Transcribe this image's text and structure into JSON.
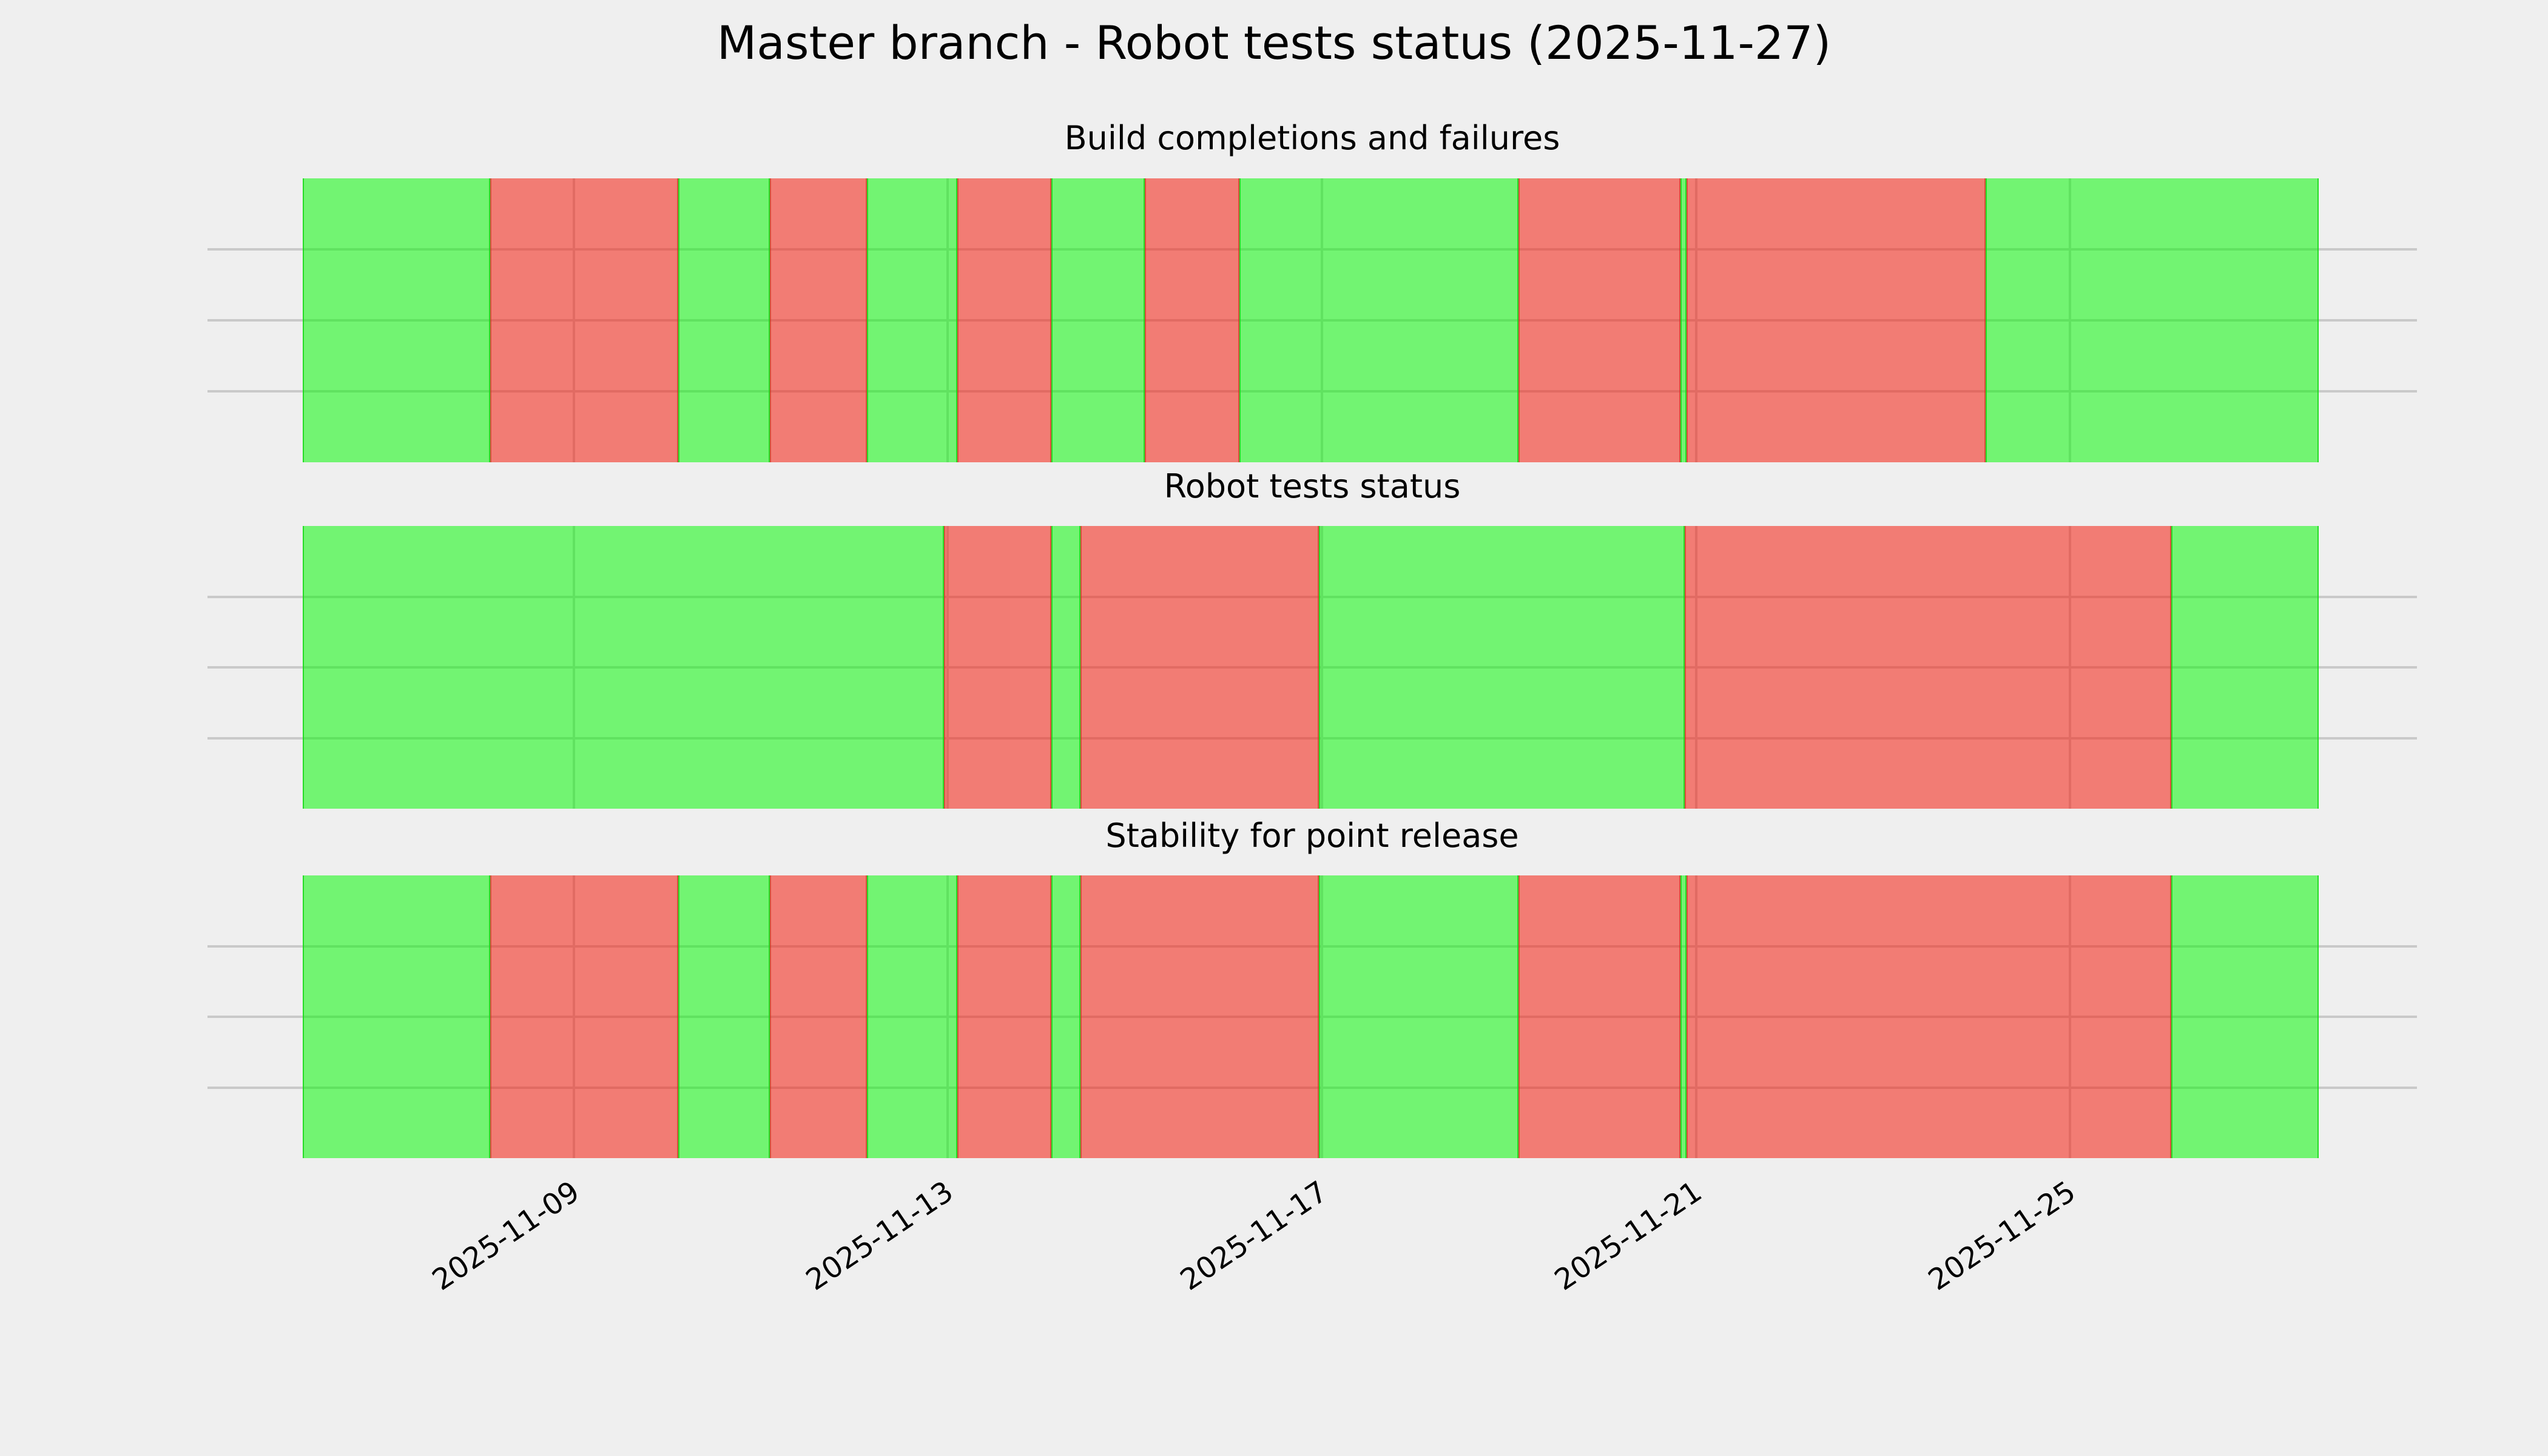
{
  "title": "Master branch - Robot tests status (2025-11-27)",
  "colors": {
    "pass_green": "#72f472",
    "fail_red": "#f37c74",
    "background": "#efefef",
    "gridline": "#c9c9c9",
    "text": "#000000"
  },
  "axis": {
    "start": "2025-11-05 02:00",
    "end": "2025-11-28 17:00",
    "ticks": [
      {
        "label": "2025-11-09",
        "t": "2025-11-09 00:00"
      },
      {
        "label": "2025-11-13",
        "t": "2025-11-13 00:00"
      },
      {
        "label": "2025-11-17",
        "t": "2025-11-17 00:00"
      },
      {
        "label": "2025-11-21",
        "t": "2025-11-21 00:00"
      },
      {
        "label": "2025-11-25",
        "t": "2025-11-25 00:00"
      }
    ],
    "hgrid_fractions": [
      25,
      50,
      75
    ]
  },
  "chart_data": [
    {
      "type": "timeline",
      "title": "Build completions and failures",
      "statuses": [
        "pass",
        "fail"
      ],
      "segments": [
        {
          "status": "pass",
          "start": "2025-11-06 02:30",
          "end": "2025-11-08 02:30"
        },
        {
          "status": "fail",
          "start": "2025-11-08 02:30",
          "end": "2025-11-10 02:45"
        },
        {
          "status": "pass",
          "start": "2025-11-10 02:45",
          "end": "2025-11-11 02:15"
        },
        {
          "status": "fail",
          "start": "2025-11-11 02:15",
          "end": "2025-11-12 03:10"
        },
        {
          "status": "pass",
          "start": "2025-11-12 03:10",
          "end": "2025-11-13 02:30"
        },
        {
          "status": "fail",
          "start": "2025-11-13 02:30",
          "end": "2025-11-14 02:30"
        },
        {
          "status": "pass",
          "start": "2025-11-14 02:30",
          "end": "2025-11-15 02:30"
        },
        {
          "status": "fail",
          "start": "2025-11-15 02:30",
          "end": "2025-11-16 02:45"
        },
        {
          "status": "pass",
          "start": "2025-11-16 02:45",
          "end": "2025-11-19 02:30"
        },
        {
          "status": "fail",
          "start": "2025-11-19 02:30",
          "end": "2025-11-20 20:00"
        },
        {
          "status": "pass",
          "start": "2025-11-20 20:00",
          "end": "2025-11-20 21:35"
        },
        {
          "status": "fail",
          "start": "2025-11-20 21:35",
          "end": "2025-11-24 02:20"
        },
        {
          "status": "pass",
          "start": "2025-11-24 02:20",
          "end": "2025-11-27 15:50"
        }
      ]
    },
    {
      "type": "timeline",
      "title": "Robot tests status",
      "statuses": [
        "pass",
        "fail"
      ],
      "segments": [
        {
          "status": "pass",
          "start": "2025-11-06 02:30",
          "end": "2025-11-12 23:00"
        },
        {
          "status": "fail",
          "start": "2025-11-12 23:00",
          "end": "2025-11-14 02:30"
        },
        {
          "status": "pass",
          "start": "2025-11-14 02:30",
          "end": "2025-11-14 10:00"
        },
        {
          "status": "fail",
          "start": "2025-11-14 10:00",
          "end": "2025-11-16 23:10"
        },
        {
          "status": "pass",
          "start": "2025-11-16 23:10",
          "end": "2025-11-20 21:05"
        },
        {
          "status": "fail",
          "start": "2025-11-20 21:05",
          "end": "2025-11-26 02:00"
        },
        {
          "status": "pass",
          "start": "2025-11-26 02:00",
          "end": "2025-11-27 15:50"
        }
      ]
    },
    {
      "type": "timeline",
      "title": "Stability for point release",
      "statuses": [
        "pass",
        "fail"
      ],
      "segments": [
        {
          "status": "pass",
          "start": "2025-11-06 02:30",
          "end": "2025-11-08 02:30"
        },
        {
          "status": "fail",
          "start": "2025-11-08 02:30",
          "end": "2025-11-10 02:45"
        },
        {
          "status": "pass",
          "start": "2025-11-10 02:45",
          "end": "2025-11-11 02:15"
        },
        {
          "status": "fail",
          "start": "2025-11-11 02:15",
          "end": "2025-11-12 03:10"
        },
        {
          "status": "pass",
          "start": "2025-11-12 03:10",
          "end": "2025-11-13 02:30"
        },
        {
          "status": "fail",
          "start": "2025-11-13 02:30",
          "end": "2025-11-14 02:30"
        },
        {
          "status": "pass",
          "start": "2025-11-14 02:30",
          "end": "2025-11-14 10:00"
        },
        {
          "status": "fail",
          "start": "2025-11-14 10:00",
          "end": "2025-11-16 23:10"
        },
        {
          "status": "pass",
          "start": "2025-11-16 23:10",
          "end": "2025-11-19 02:30"
        },
        {
          "status": "fail",
          "start": "2025-11-19 02:30",
          "end": "2025-11-20 20:00"
        },
        {
          "status": "pass",
          "start": "2025-11-20 20:00",
          "end": "2025-11-20 21:35"
        },
        {
          "status": "fail",
          "start": "2025-11-20 21:35",
          "end": "2025-11-26 02:00"
        },
        {
          "status": "pass",
          "start": "2025-11-26 02:00",
          "end": "2025-11-27 15:50"
        }
      ]
    }
  ]
}
